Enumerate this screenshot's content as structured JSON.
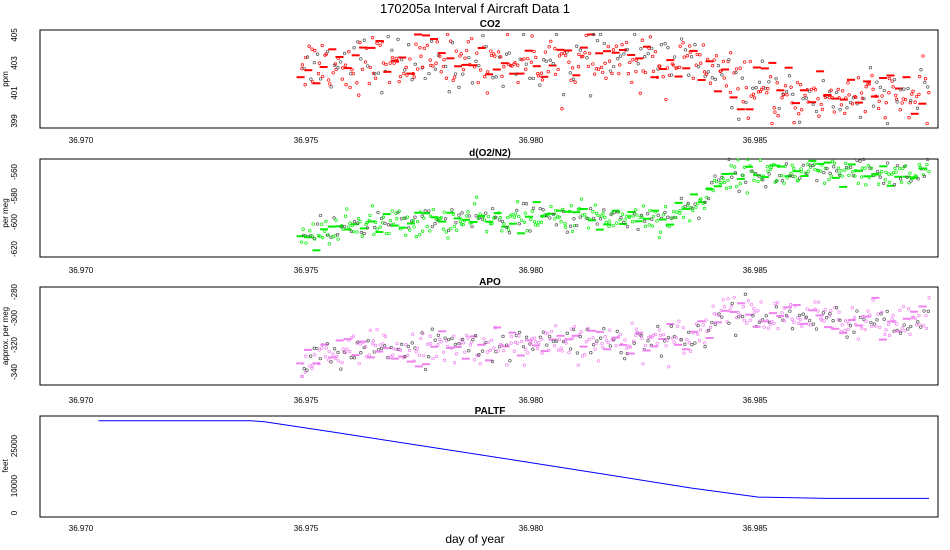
{
  "figure": {
    "title": "170205a   Interval f Aircraft Data 1",
    "xlabel": "day of year"
  },
  "chart_data": [
    {
      "type": "scatter",
      "title": "CO2",
      "xlabel": "day of year",
      "ylabel": "ppm",
      "xlim": [
        36.9685,
        36.9885
      ],
      "ylim": [
        398.8,
        405.3
      ],
      "x_ticks": [
        "36.970",
        "36.975",
        "36.980",
        "36.985"
      ],
      "y_ticks": [
        "399",
        "401",
        "403",
        "405"
      ],
      "grid": false,
      "color": "#ff0000",
      "series": [
        {
          "x_range": [
            36.9743,
            36.9883
          ],
          "trend": [
            [
              36.9743,
              403.1
            ],
            [
              36.977,
              403.2
            ],
            [
              36.98,
              403.2
            ],
            [
              36.9825,
              403.3
            ],
            [
              36.9833,
              402.9
            ],
            [
              36.984,
              401.6
            ],
            [
              36.985,
              400.8
            ],
            [
              36.987,
              400.9
            ],
            [
              36.9883,
              400.8
            ]
          ],
          "noise": 0.9
        }
      ]
    },
    {
      "type": "scatter",
      "title": "d(O2/N2)",
      "xlabel": "day of year",
      "ylabel": "per meg",
      "xlim": [
        36.9685,
        36.9885
      ],
      "ylim": [
        -622,
        -553
      ],
      "x_ticks": [
        "36.970",
        "36.975",
        "36.980",
        "36.985"
      ],
      "y_ticks": [
        "-620",
        "-600",
        "-580",
        "-560"
      ],
      "grid": false,
      "color": "#00ee00",
      "series": [
        {
          "x_range": [
            36.9743,
            36.9883
          ],
          "trend": [
            [
              36.9743,
              -608
            ],
            [
              36.9755,
              -599
            ],
            [
              36.978,
              -596
            ],
            [
              36.98,
              -594
            ],
            [
              36.9825,
              -594
            ],
            [
              36.9833,
              -583
            ],
            [
              36.9836,
              -566
            ],
            [
              36.9845,
              -563
            ],
            [
              36.9883,
              -564
            ]
          ],
          "noise": 5
        }
      ]
    },
    {
      "type": "scatter",
      "title": "APO",
      "xlabel": "day of year",
      "ylabel": "approx. per meg",
      "xlim": [
        36.9685,
        36.9885
      ],
      "ylim": [
        -346,
        -276
      ],
      "x_ticks": [
        "36.970",
        "36.975",
        "36.980",
        "36.985"
      ],
      "y_ticks": [
        "-340",
        "-320",
        "-300",
        "-280"
      ],
      "grid": false,
      "color": "#ee82ee",
      "series": [
        {
          "x_range": [
            36.9743,
            36.9883
          ],
          "trend": [
            [
              36.9743,
              -328
            ],
            [
              36.976,
              -320
            ],
            [
              36.98,
              -317
            ],
            [
              36.9825,
              -313
            ],
            [
              36.9834,
              -306
            ],
            [
              36.9837,
              -290
            ],
            [
              36.9845,
              -298
            ],
            [
              36.9883,
              -300
            ]
          ],
          "noise": 6
        }
      ]
    },
    {
      "type": "line",
      "title": "PALTF",
      "xlabel": "day of year",
      "ylabel": "feet",
      "xlim": [
        36.9685,
        36.9885
      ],
      "ylim": [
        -1000,
        37000
      ],
      "x_ticks": [
        "36.970",
        "36.975",
        "36.980",
        "36.985"
      ],
      "y_ticks": [
        "0",
        "10000",
        "25000"
      ],
      "grid": false,
      "color": "#0000ff",
      "series": [
        {
          "x": [
            36.9698,
            36.9732,
            36.9735,
            36.975,
            36.977,
            36.979,
            36.981,
            36.983,
            36.9845,
            36.986,
            36.9883
          ],
          "y": [
            35200,
            35200,
            34800,
            31000,
            25800,
            20600,
            15300,
            9900,
            6500,
            6000,
            6000
          ]
        }
      ]
    }
  ]
}
